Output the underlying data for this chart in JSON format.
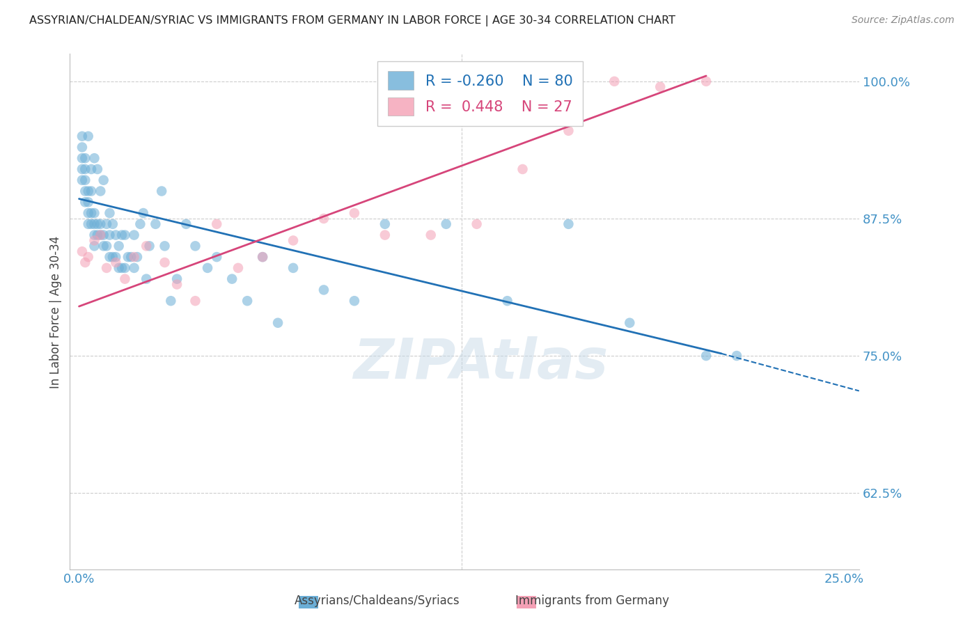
{
  "title": "ASSYRIAN/CHALDEAN/SYRIAC VS IMMIGRANTS FROM GERMANY IN LABOR FORCE | AGE 30-34 CORRELATION CHART",
  "source": "Source: ZipAtlas.com",
  "ylabel": "In Labor Force | Age 30-34",
  "xlim": [
    -0.003,
    0.255
  ],
  "ylim": [
    0.555,
    1.025
  ],
  "yticks": [
    0.625,
    0.75,
    0.875,
    1.0
  ],
  "ytick_labels": [
    "62.5%",
    "75.0%",
    "87.5%",
    "100.0%"
  ],
  "xticks": [
    0.0,
    0.05,
    0.1,
    0.15,
    0.2,
    0.25
  ],
  "xtick_labels": [
    "0.0%",
    "",
    "",
    "",
    "",
    "25.0%"
  ],
  "blue_color": "#6baed6",
  "pink_color": "#f4a0b5",
  "blue_line_color": "#2171b5",
  "pink_line_color": "#d6457a",
  "label_color": "#4292c6",
  "R_blue": -0.26,
  "N_blue": 80,
  "R_pink": 0.448,
  "N_pink": 27,
  "legend_label_blue": "Assyrians/Chaldeans/Syriacs",
  "legend_label_pink": "Immigrants from Germany",
  "watermark": "ZIPAtlas",
  "blue_line_x0": 0.0,
  "blue_line_y0": 0.893,
  "blue_line_x1": 0.21,
  "blue_line_y1": 0.752,
  "blue_line_dash_x1": 0.255,
  "blue_line_dash_y1": 0.718,
  "pink_line_x0": 0.0,
  "pink_line_y0": 0.795,
  "pink_line_x1": 0.205,
  "pink_line_y1": 1.005,
  "blue_x": [
    0.001,
    0.001,
    0.001,
    0.001,
    0.001,
    0.002,
    0.002,
    0.002,
    0.002,
    0.002,
    0.003,
    0.003,
    0.003,
    0.003,
    0.003,
    0.004,
    0.004,
    0.004,
    0.004,
    0.005,
    0.005,
    0.005,
    0.005,
    0.005,
    0.006,
    0.006,
    0.006,
    0.007,
    0.007,
    0.007,
    0.008,
    0.008,
    0.008,
    0.009,
    0.009,
    0.01,
    0.01,
    0.01,
    0.011,
    0.011,
    0.012,
    0.012,
    0.013,
    0.013,
    0.014,
    0.014,
    0.015,
    0.015,
    0.016,
    0.017,
    0.018,
    0.018,
    0.019,
    0.02,
    0.021,
    0.022,
    0.023,
    0.025,
    0.027,
    0.028,
    0.03,
    0.032,
    0.035,
    0.038,
    0.042,
    0.045,
    0.05,
    0.055,
    0.06,
    0.065,
    0.07,
    0.08,
    0.09,
    0.1,
    0.12,
    0.14,
    0.16,
    0.18,
    0.205,
    0.215
  ],
  "blue_y": [
    0.91,
    0.92,
    0.93,
    0.94,
    0.95,
    0.89,
    0.9,
    0.91,
    0.92,
    0.93,
    0.87,
    0.88,
    0.89,
    0.9,
    0.95,
    0.87,
    0.88,
    0.9,
    0.92,
    0.85,
    0.86,
    0.87,
    0.88,
    0.93,
    0.86,
    0.87,
    0.92,
    0.86,
    0.87,
    0.9,
    0.85,
    0.86,
    0.91,
    0.85,
    0.87,
    0.84,
    0.86,
    0.88,
    0.84,
    0.87,
    0.84,
    0.86,
    0.83,
    0.85,
    0.83,
    0.86,
    0.83,
    0.86,
    0.84,
    0.84,
    0.83,
    0.86,
    0.84,
    0.87,
    0.88,
    0.82,
    0.85,
    0.87,
    0.9,
    0.85,
    0.8,
    0.82,
    0.87,
    0.85,
    0.83,
    0.84,
    0.82,
    0.8,
    0.84,
    0.78,
    0.83,
    0.81,
    0.8,
    0.87,
    0.87,
    0.8,
    0.87,
    0.78,
    0.75,
    0.75
  ],
  "pink_x": [
    0.001,
    0.002,
    0.003,
    0.005,
    0.007,
    0.009,
    0.012,
    0.015,
    0.018,
    0.022,
    0.028,
    0.032,
    0.038,
    0.045,
    0.052,
    0.06,
    0.07,
    0.08,
    0.09,
    0.1,
    0.115,
    0.13,
    0.145,
    0.16,
    0.175,
    0.19,
    0.205
  ],
  "pink_y": [
    0.845,
    0.835,
    0.84,
    0.855,
    0.86,
    0.83,
    0.835,
    0.82,
    0.84,
    0.85,
    0.835,
    0.815,
    0.8,
    0.87,
    0.83,
    0.84,
    0.855,
    0.875,
    0.88,
    0.86,
    0.86,
    0.87,
    0.92,
    0.955,
    1.0,
    0.995,
    1.0
  ]
}
